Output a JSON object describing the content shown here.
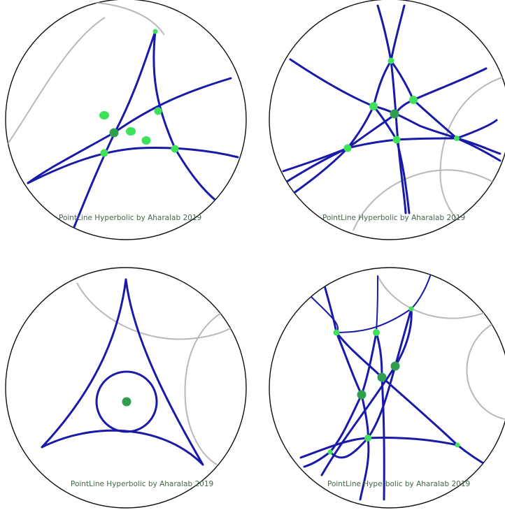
{
  "panels": [
    {
      "id": "top-left",
      "caption": "PointLine Hyperbolic by Aharalab 2019"
    },
    {
      "id": "top-right",
      "caption": "PointLine Hyperbolic by Aharalab 2019"
    },
    {
      "id": "bottom-left",
      "caption": "PointLine Hyperbolic by Aharalab 2019"
    },
    {
      "id": "bottom-right",
      "caption": "PointLine Hyperbolic by Aharalab 2019"
    }
  ],
  "colors": {
    "geodesic": "#1a1aa8",
    "boundary_arc": "#b9b9b9",
    "point_light": "#3fe05a",
    "point_dark": "#2e9e4f",
    "disk_outline": "#111111"
  }
}
